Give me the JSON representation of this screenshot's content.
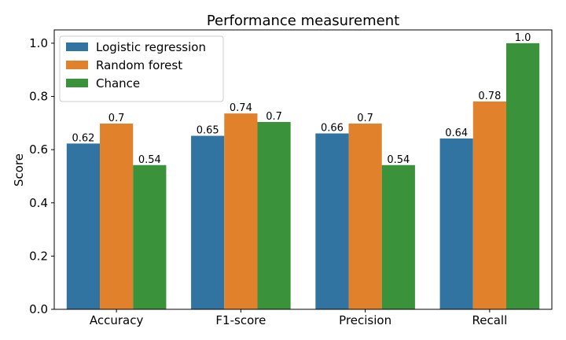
{
  "chart_data": {
    "type": "bar",
    "title": "Performance measurement",
    "xlabel": "",
    "ylabel": "Score",
    "ylim": [
      0,
      1.05
    ],
    "yticks": [
      "0.0",
      "0.2",
      "0.4",
      "0.6",
      "0.8",
      "1.0"
    ],
    "categories": [
      "Accuracy",
      "F1-score",
      "Precision",
      "Recall"
    ],
    "series": [
      {
        "name": "Logistic regression",
        "color": "#3274a1",
        "values": [
          0.623,
          0.652,
          0.661,
          0.642
        ],
        "labels": [
          "0.62",
          "0.65",
          "0.66",
          "0.64"
        ]
      },
      {
        "name": "Random forest",
        "color": "#e1812c",
        "values": [
          0.698,
          0.736,
          0.698,
          0.781
        ],
        "labels": [
          "0.7",
          "0.74",
          "0.7",
          "0.78"
        ]
      },
      {
        "name": "Chance",
        "color": "#3a923a",
        "values": [
          0.542,
          0.704,
          0.542,
          1.0
        ],
        "labels": [
          "0.54",
          "0.7",
          "0.54",
          "1.0"
        ]
      }
    ],
    "grid": false,
    "legend": "top-left"
  }
}
